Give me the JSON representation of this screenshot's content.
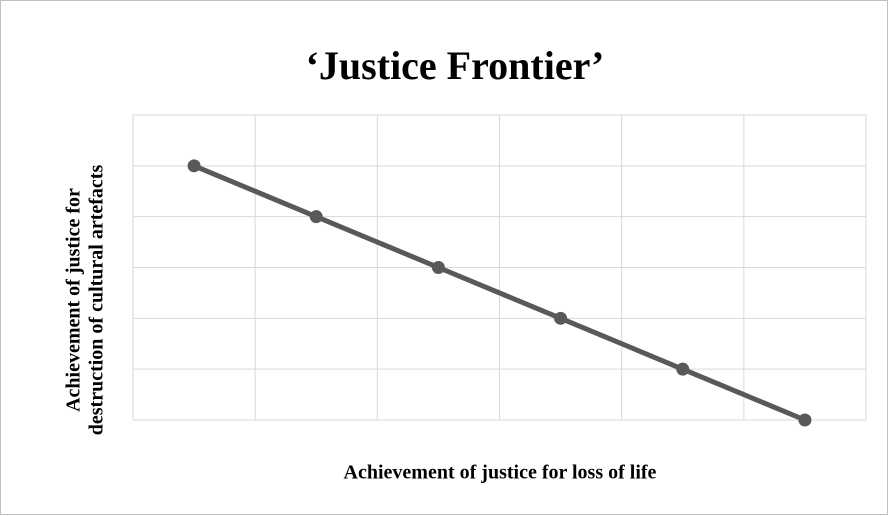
{
  "chart_data": {
    "type": "line",
    "title": "‘Justice Frontier’",
    "x_label": "Achievement of justice for loss of life",
    "y_label": [
      "Achievement of justice for",
      "destruction of cultural artefacts"
    ],
    "x": [
      0.5,
      1.5,
      2.5,
      3.5,
      4.5,
      5.5
    ],
    "series": [
      {
        "color": "#595959",
        "values": [
          5,
          4,
          3,
          2,
          1,
          0
        ]
      }
    ],
    "xlim": [
      0,
      6
    ],
    "xticks": [
      0,
      1,
      2,
      3,
      4,
      5,
      6
    ],
    "ylim": [
      0,
      6
    ],
    "yticks": [
      0,
      1,
      2,
      3,
      4,
      5,
      6
    ],
    "grid": true
  }
}
